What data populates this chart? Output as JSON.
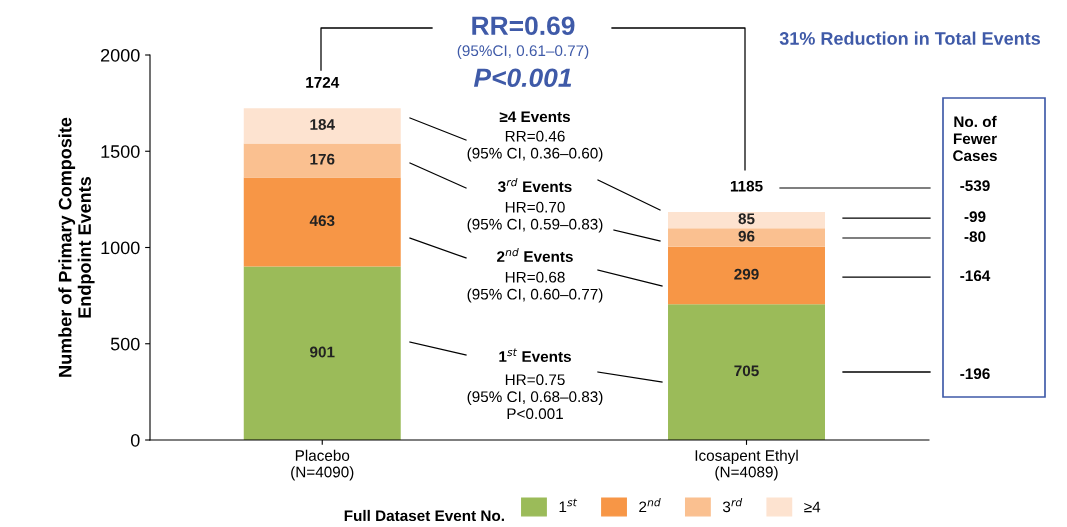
{
  "chart_data": {
    "type": "bar",
    "stacked": true,
    "ylabel": "Number of Primary Composite\nEndpoint Events",
    "categories": [
      "Placebo\n(N=4090)",
      "Icosapent Ethyl\n(N=4089)"
    ],
    "series": [
      {
        "name": "1$^{st}$",
        "color": "#9bbb59",
        "values": [
          901,
          705
        ]
      },
      {
        "name": "2$^{nd}$",
        "color": "#f79646",
        "values": [
          463,
          299
        ]
      },
      {
        "name": "3$^{rd}$",
        "color": "#fac090",
        "values": [
          176,
          96
        ]
      },
      {
        "name": "≥4",
        "color": "#fde3d0",
        "values": [
          184,
          85
        ]
      }
    ],
    "ylim": [
      0,
      2000
    ],
    "yticks": [
      0,
      500,
      1000,
      1500,
      2000
    ],
    "data_labels": true,
    "totals": [
      "1724",
      "1185"
    ],
    "legend": "bottom",
    "legend_title": "Full Dataset Event No.",
    "grid": false,
    "annotations": [
      "RR=0.69",
      "(95%CI, 0.61–0.77)",
      "P<0.001",
      "31% Reduction in Total Events",
      "≥4 Events",
      "RR=0.46\n(95% CI, 0.36–0.60)",
      "3$^{rd}$ Events",
      "HR=0.70\n(95% CI, 0.59–0.83)",
      "2$^{nd}$ Events",
      "HR=0.68\n(95% CI, 0.60–0.77)",
      "1$^{st}$ Events",
      "HR=0.75\n(95% CI, 0.68–0.83)\nP<0.001",
      "No. of\nFewer\nCases",
      "-539",
      "-99",
      "-80",
      "-164",
      "-196"
    ]
  }
}
